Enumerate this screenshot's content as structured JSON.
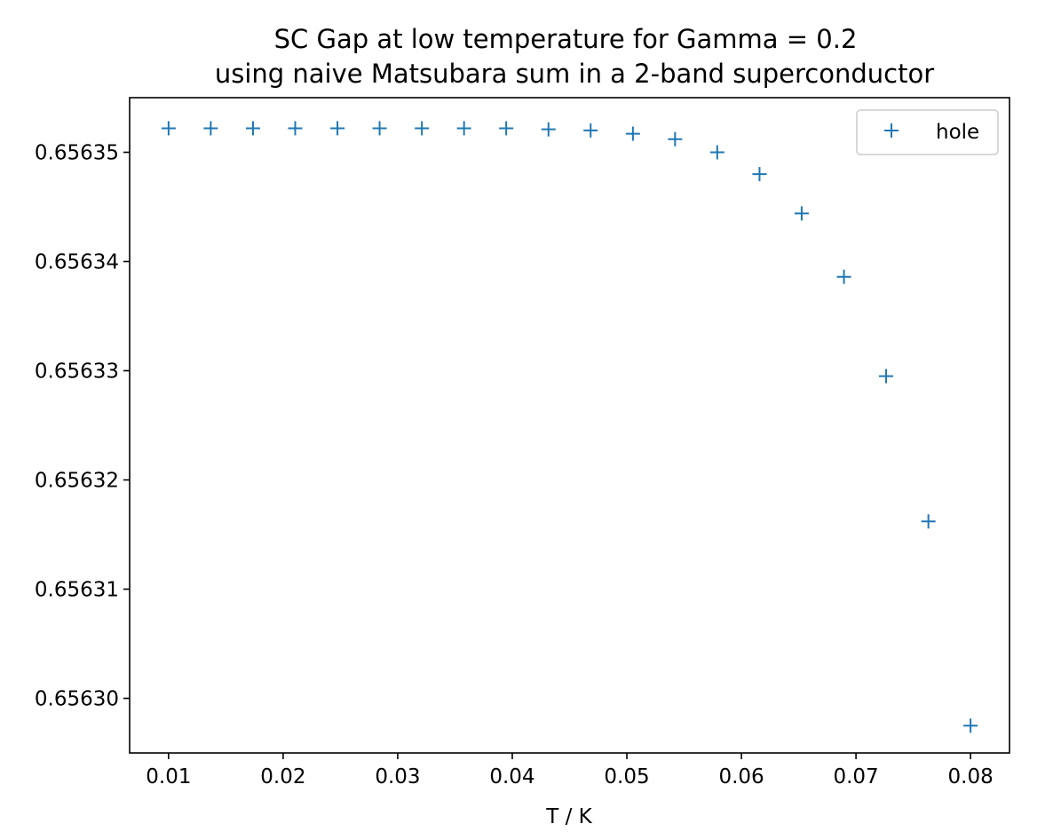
{
  "chart_data": {
    "type": "scatter",
    "title": "SC Gap at low temperature for Gamma = 0.2",
    "subtitle": "using naive Matsubara sum in a 2-band superconductor",
    "xlabel": "T / K",
    "ylabel": "",
    "xlim": [
      0.0066,
      0.0834
    ],
    "ylim": [
      0.656295,
      0.656355
    ],
    "xticks": [
      0.01,
      0.02,
      0.03,
      0.04,
      0.05,
      0.06,
      0.07,
      0.08
    ],
    "xtick_labels": [
      "0.01",
      "0.02",
      "0.03",
      "0.04",
      "0.05",
      "0.06",
      "0.07",
      "0.08"
    ],
    "yticks": [
      0.6563,
      0.65631,
      0.65632,
      0.65633,
      0.65634,
      0.65635
    ],
    "ytick_labels": [
      "0.65630",
      "0.65631",
      "0.65632",
      "0.65633",
      "0.65634",
      "0.65635"
    ],
    "grid": false,
    "legend_position": "top-right",
    "marker": "+",
    "color": "#1f77b4",
    "series": [
      {
        "name": "hole",
        "x": [
          0.01,
          0.01368,
          0.01737,
          0.02105,
          0.02474,
          0.02842,
          0.03211,
          0.03579,
          0.03947,
          0.04316,
          0.04684,
          0.05053,
          0.05421,
          0.05789,
          0.06158,
          0.06526,
          0.06895,
          0.07263,
          0.07632,
          0.08
        ],
        "y": [
          0.6563522,
          0.6563522,
          0.6563522,
          0.6563522,
          0.6563522,
          0.6563522,
          0.6563522,
          0.6563522,
          0.6563522,
          0.6563521,
          0.656352,
          0.6563517,
          0.6563512,
          0.65635,
          0.656348,
          0.6563444,
          0.6563386,
          0.6563295,
          0.6563162,
          0.6562975
        ]
      }
    ]
  }
}
